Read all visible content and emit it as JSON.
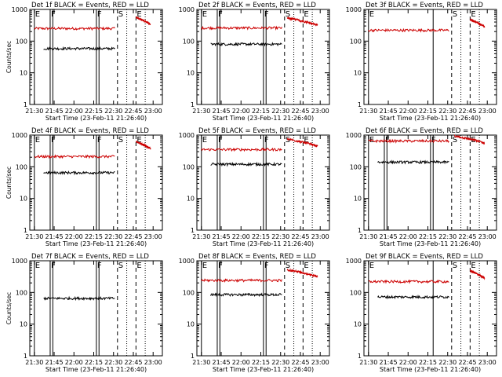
{
  "chart_data": [
    {
      "type": "line",
      "title": "Det 1f BLACK = Events, RED = LLD",
      "xlabel": "Start Time (23-Feb-11 21:26:40)",
      "ylabel": "Counts/sec",
      "yscale": "log",
      "ylim": [
        1,
        1000
      ],
      "xticks": [
        "21:30",
        "21:45",
        "22:00",
        "22:15",
        "22:30",
        "22:45",
        "23:00"
      ],
      "yticks": [
        "1",
        "10",
        "100",
        "1000"
      ],
      "series": [
        {
          "color": "#cc0000",
          "start": "21:30",
          "end": "22:31",
          "level": 250,
          "tail": {
            "start": "22:47",
            "end": "22:58",
            "level": 450
          }
        },
        {
          "color": "#000000",
          "start": "21:37",
          "end": "22:31",
          "level": 58
        }
      ],
      "markers": [
        {
          "label": "E",
          "time": "21:30",
          "style": "solid"
        },
        {
          "label": "F",
          "time": "21:42",
          "style": "solid"
        },
        {
          "label": "",
          "time": "21:44",
          "style": "solid"
        },
        {
          "label": "F",
          "time": "22:17",
          "style": "solid"
        },
        {
          "label": "",
          "time": "22:19",
          "style": "solid"
        },
        {
          "label": "S",
          "time": "22:33",
          "style": "dashed"
        },
        {
          "label": "E",
          "time": "22:47",
          "style": "dashed"
        },
        {
          "label": "",
          "time": "22:40",
          "style": "dotted"
        },
        {
          "label": "",
          "time": "22:54",
          "style": "dotted"
        }
      ]
    },
    {
      "type": "line",
      "title": "Det 2f BLACK = Events, RED = LLD",
      "xlabel": "Start Time (23-Feb-11 21:26:40)",
      "ylabel": "",
      "yscale": "log",
      "ylim": [
        1,
        1000
      ],
      "xticks": [
        "21:30",
        "21:45",
        "22:00",
        "22:15",
        "22:30",
        "22:45",
        "23:00"
      ],
      "yticks": [
        "1",
        "10",
        "100",
        "1000"
      ],
      "series": [
        {
          "color": "#cc0000",
          "start": "21:30",
          "end": "22:31",
          "level": 260,
          "tail": {
            "start": "22:35",
            "end": "22:58",
            "level": 430
          }
        },
        {
          "color": "#000000",
          "start": "21:37",
          "end": "22:31",
          "level": 80
        }
      ],
      "markers": [
        {
          "label": "E",
          "time": "21:30",
          "style": "solid"
        },
        {
          "label": "F",
          "time": "21:42",
          "style": "solid"
        },
        {
          "label": "",
          "time": "21:44",
          "style": "solid"
        },
        {
          "label": "F",
          "time": "22:17",
          "style": "solid"
        },
        {
          "label": "",
          "time": "22:19",
          "style": "solid"
        },
        {
          "label": "S",
          "time": "22:33",
          "style": "dashed"
        },
        {
          "label": "E",
          "time": "22:47",
          "style": "dashed"
        },
        {
          "label": "",
          "time": "22:40",
          "style": "dotted"
        },
        {
          "label": "",
          "time": "22:54",
          "style": "dotted"
        }
      ]
    },
    {
      "type": "line",
      "title": "Det 3f BLACK = Events, RED = LLD",
      "xlabel": "Start Time (23-Feb-11 21:26:40)",
      "ylabel": "",
      "yscale": "log",
      "ylim": [
        1,
        1000
      ],
      "xticks": [
        "21:30",
        "21:45",
        "22:00",
        "22:15",
        "22:30",
        "22:45",
        "23:00"
      ],
      "yticks": [
        "1",
        "10",
        "100",
        "1000"
      ],
      "series": [
        {
          "color": "#cc0000",
          "start": "21:30",
          "end": "22:31",
          "level": 220,
          "tail": {
            "start": "22:47",
            "end": "22:58",
            "level": 380
          }
        }
      ],
      "markers": [
        {
          "label": "E",
          "time": "21:30",
          "style": "solid"
        },
        {
          "label": "",
          "time": "22:19",
          "style": "solid"
        },
        {
          "label": "S",
          "time": "22:33",
          "style": "dashed"
        },
        {
          "label": "E",
          "time": "22:47",
          "style": "dashed"
        },
        {
          "label": "",
          "time": "22:40",
          "style": "dotted"
        },
        {
          "label": "",
          "time": "22:54",
          "style": "dotted"
        }
      ]
    },
    {
      "type": "line",
      "title": "Det 4f BLACK = Events, RED = LLD",
      "xlabel": "Start Time (23-Feb-11 21:26:40)",
      "ylabel": "Counts/sec",
      "yscale": "log",
      "ylim": [
        1,
        1000
      ],
      "xticks": [
        "21:30",
        "21:45",
        "22:00",
        "22:15",
        "22:30",
        "22:45",
        "23:00"
      ],
      "yticks": [
        "1",
        "10",
        "100",
        "1000"
      ],
      "series": [
        {
          "color": "#cc0000",
          "start": "21:30",
          "end": "22:31",
          "level": 210,
          "tail": {
            "start": "22:47",
            "end": "22:58",
            "level": 500
          }
        },
        {
          "color": "#000000",
          "start": "21:37",
          "end": "22:31",
          "level": 65
        }
      ],
      "markers": [
        {
          "label": "E",
          "time": "21:30",
          "style": "solid"
        },
        {
          "label": "F",
          "time": "21:42",
          "style": "solid"
        },
        {
          "label": "",
          "time": "21:44",
          "style": "solid"
        },
        {
          "label": "F",
          "time": "22:17",
          "style": "solid"
        },
        {
          "label": "",
          "time": "22:19",
          "style": "solid"
        },
        {
          "label": "S",
          "time": "22:33",
          "style": "dashed"
        },
        {
          "label": "E",
          "time": "22:47",
          "style": "dashed"
        },
        {
          "label": "",
          "time": "22:40",
          "style": "dotted"
        },
        {
          "label": "",
          "time": "22:54",
          "style": "dotted"
        }
      ]
    },
    {
      "type": "line",
      "title": "Det 5f BLACK = Events, RED = LLD",
      "xlabel": "Start Time (23-Feb-11 21:26:40)",
      "ylabel": "",
      "yscale": "log",
      "ylim": [
        1,
        1000
      ],
      "xticks": [
        "21:30",
        "21:45",
        "22:00",
        "22:15",
        "22:30",
        "22:45",
        "23:00"
      ],
      "yticks": [
        "1",
        "10",
        "100",
        "1000"
      ],
      "series": [
        {
          "color": "#cc0000",
          "start": "21:30",
          "end": "22:31",
          "level": 350,
          "tail": {
            "start": "22:35",
            "end": "22:58",
            "level": 600
          }
        },
        {
          "color": "#000000",
          "start": "21:37",
          "end": "22:31",
          "level": 120
        }
      ],
      "markers": [
        {
          "label": "E",
          "time": "21:30",
          "style": "solid"
        },
        {
          "label": "F",
          "time": "21:42",
          "style": "solid"
        },
        {
          "label": "",
          "time": "21:44",
          "style": "solid"
        },
        {
          "label": "F",
          "time": "22:17",
          "style": "solid"
        },
        {
          "label": "",
          "time": "22:19",
          "style": "solid"
        },
        {
          "label": "S",
          "time": "22:33",
          "style": "dashed"
        },
        {
          "label": "E",
          "time": "22:47",
          "style": "dashed"
        },
        {
          "label": "",
          "time": "22:40",
          "style": "dotted"
        },
        {
          "label": "",
          "time": "22:54",
          "style": "dotted"
        }
      ]
    },
    {
      "type": "line",
      "title": "Det 6f BLACK = Events, RED = LLD",
      "xlabel": "Start Time (23-Feb-11 21:26:40)",
      "ylabel": "",
      "yscale": "log",
      "ylim": [
        1,
        1000
      ],
      "xticks": [
        "21:30",
        "21:45",
        "22:00",
        "22:15",
        "22:30",
        "22:45",
        "23:00"
      ],
      "yticks": [
        "1",
        "10",
        "100",
        "1000"
      ],
      "series": [
        {
          "color": "#cc0000",
          "start": "21:30",
          "end": "22:31",
          "level": 650,
          "tail": {
            "start": "22:35",
            "end": "22:58",
            "level": 750
          }
        },
        {
          "color": "#000000",
          "start": "21:37",
          "end": "22:31",
          "level": 140
        }
      ],
      "markers": [
        {
          "label": "E",
          "time": "21:30",
          "style": "solid"
        },
        {
          "label": "F",
          "time": "21:42",
          "style": "solid"
        },
        {
          "label": "",
          "time": "21:44",
          "style": "solid"
        },
        {
          "label": "F",
          "time": "22:17",
          "style": "solid"
        },
        {
          "label": "",
          "time": "22:19",
          "style": "solid"
        },
        {
          "label": "S",
          "time": "22:33",
          "style": "dashed"
        },
        {
          "label": "E",
          "time": "22:47",
          "style": "dashed"
        },
        {
          "label": "",
          "time": "22:40",
          "style": "dotted"
        },
        {
          "label": "",
          "time": "22:54",
          "style": "dotted"
        }
      ]
    },
    {
      "type": "line",
      "title": "Det 7f BLACK = Events, RED = LLD",
      "xlabel": "Start Time (23-Feb-11 21:26:40)",
      "ylabel": "Counts/sec",
      "yscale": "log",
      "ylim": [
        1,
        1000
      ],
      "xticks": [
        "21:30",
        "21:45",
        "22:00",
        "22:15",
        "22:30",
        "22:45",
        "23:00"
      ],
      "yticks": [
        "1",
        "10",
        "100",
        "1000"
      ],
      "series": [
        {
          "color": "#000000",
          "start": "21:37",
          "end": "22:31",
          "level": 65
        }
      ],
      "markers": [
        {
          "label": "E",
          "time": "21:30",
          "style": "solid"
        },
        {
          "label": "F",
          "time": "21:42",
          "style": "solid"
        },
        {
          "label": "",
          "time": "21:44",
          "style": "solid"
        },
        {
          "label": "F",
          "time": "22:17",
          "style": "solid"
        },
        {
          "label": "",
          "time": "22:19",
          "style": "solid"
        },
        {
          "label": "S",
          "time": "22:33",
          "style": "dashed"
        },
        {
          "label": "E",
          "time": "22:47",
          "style": "dashed"
        },
        {
          "label": "",
          "time": "22:40",
          "style": "dotted"
        },
        {
          "label": "",
          "time": "22:54",
          "style": "dotted"
        }
      ]
    },
    {
      "type": "line",
      "title": "Det 8f BLACK = Events, RED = LLD",
      "xlabel": "Start Time (23-Feb-11 21:26:40)",
      "ylabel": "",
      "yscale": "log",
      "ylim": [
        1,
        1000
      ],
      "xticks": [
        "21:30",
        "21:45",
        "22:00",
        "22:15",
        "22:30",
        "22:45",
        "23:00"
      ],
      "yticks": [
        "1",
        "10",
        "100",
        "1000"
      ],
      "series": [
        {
          "color": "#cc0000",
          "start": "21:30",
          "end": "22:31",
          "level": 240,
          "tail": {
            "start": "22:35",
            "end": "22:58",
            "level": 420
          }
        },
        {
          "color": "#000000",
          "start": "21:37",
          "end": "22:31",
          "level": 85
        }
      ],
      "markers": [
        {
          "label": "E",
          "time": "21:30",
          "style": "solid"
        },
        {
          "label": "F",
          "time": "21:42",
          "style": "solid"
        },
        {
          "label": "",
          "time": "21:44",
          "style": "solid"
        },
        {
          "label": "F",
          "time": "22:17",
          "style": "solid"
        },
        {
          "label": "",
          "time": "22:19",
          "style": "solid"
        },
        {
          "label": "S",
          "time": "22:33",
          "style": "dashed"
        },
        {
          "label": "E",
          "time": "22:47",
          "style": "dashed"
        },
        {
          "label": "",
          "time": "22:40",
          "style": "dotted"
        },
        {
          "label": "",
          "time": "22:54",
          "style": "dotted"
        }
      ]
    },
    {
      "type": "line",
      "title": "Det 9f BLACK = Events, RED = LLD",
      "xlabel": "Start Time (23-Feb-11 21:26:40)",
      "ylabel": "",
      "yscale": "log",
      "ylim": [
        1,
        1000
      ],
      "xticks": [
        "21:30",
        "21:45",
        "22:00",
        "22:15",
        "22:30",
        "22:45",
        "23:00"
      ],
      "yticks": [
        "1",
        "10",
        "100",
        "1000"
      ],
      "series": [
        {
          "color": "#cc0000",
          "start": "21:30",
          "end": "22:31",
          "level": 220,
          "tail": {
            "start": "22:47",
            "end": "22:58",
            "level": 380
          }
        },
        {
          "color": "#000000",
          "start": "21:37",
          "end": "22:31",
          "level": 72
        }
      ],
      "markers": [
        {
          "label": "E",
          "time": "21:30",
          "style": "solid"
        },
        {
          "label": "",
          "time": "22:19",
          "style": "solid"
        },
        {
          "label": "S",
          "time": "22:33",
          "style": "dashed"
        },
        {
          "label": "E",
          "time": "22:47",
          "style": "dashed"
        },
        {
          "label": "",
          "time": "22:40",
          "style": "dotted"
        },
        {
          "label": "",
          "time": "22:54",
          "style": "dotted"
        }
      ]
    }
  ]
}
